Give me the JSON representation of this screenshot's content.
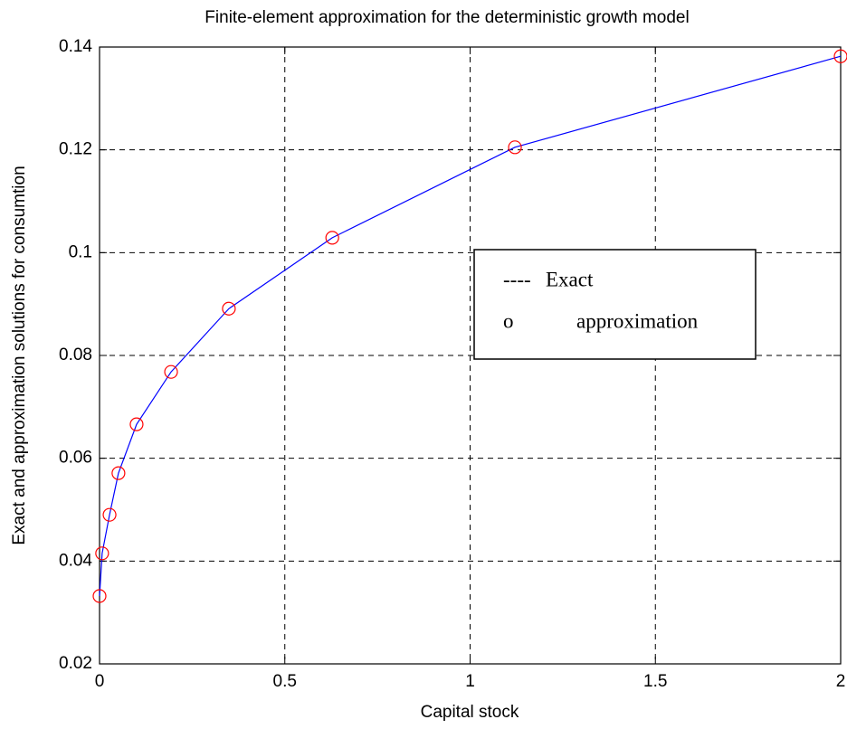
{
  "chart_data": {
    "type": "line",
    "title": "Finite-element approximation for the deterministic growth model",
    "xlabel": "Capital stock",
    "ylabel": "Exact and approximation solutions for consumtion",
    "x": [
      0.0,
      0.007,
      0.027,
      0.051,
      0.1,
      0.193,
      0.349,
      0.628,
      1.121,
      2.0
    ],
    "series": [
      {
        "name": "Exact",
        "color": "#0000ff",
        "style": "line",
        "values": [
          0.0332,
          0.0415,
          0.049,
          0.0571,
          0.0666,
          0.0768,
          0.0891,
          0.1029,
          0.1205,
          0.1382
        ]
      },
      {
        "name": "approximation",
        "color": "#ff0000",
        "style": "circle",
        "values": [
          0.0332,
          0.0415,
          0.049,
          0.0571,
          0.0666,
          0.0768,
          0.0891,
          0.1029,
          0.1205,
          0.1382
        ]
      }
    ],
    "legend_markers": [
      "----",
      "o"
    ],
    "xlim": [
      0,
      2
    ],
    "ylim": [
      0.02,
      0.14
    ],
    "xticks": [
      0,
      0.5,
      1,
      1.5,
      2
    ],
    "yticks": [
      0.02,
      0.04,
      0.06,
      0.08,
      0.1,
      0.12,
      0.14
    ],
    "grid": true
  }
}
